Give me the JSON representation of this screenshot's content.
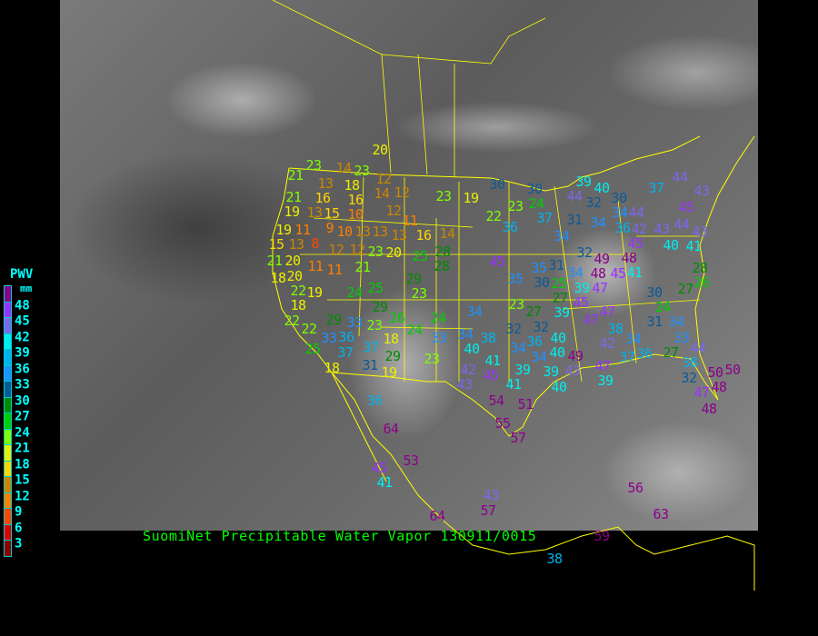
{
  "title": "SuomiNet Precipitable Water Vapor 130911/0015",
  "legend": {
    "title": "PWV",
    "unit": "mm",
    "ticks": [
      "48",
      "45",
      "42",
      "39",
      "36",
      "33",
      "30",
      "27",
      "24",
      "21",
      "18",
      "15",
      "12",
      "9",
      "6",
      "3"
    ],
    "colors": [
      "#8b008b",
      "#9b30ff",
      "#7b68ee",
      "#00eeee",
      "#00b2ee",
      "#1e90ff",
      "#0b5a96",
      "#008b00",
      "#00cd00",
      "#7fff00",
      "#eeee00",
      "#ffd700",
      "#cd8500",
      "#ff7f00",
      "#ff4500",
      "#dd0000",
      "#8b0000"
    ]
  },
  "colors": {
    "background": "#000000",
    "borders": "#ffff00",
    "title": "#00ff00",
    "legend_text": "#00ffff"
  },
  "stations": [
    23,
    21,
    13,
    14,
    23,
    18,
    12,
    21,
    16,
    16,
    14,
    12,
    19,
    13,
    15,
    10,
    9,
    12,
    11,
    19,
    11,
    10,
    13,
    13,
    13,
    16,
    14,
    15,
    13,
    8,
    12,
    12,
    23,
    20,
    25,
    28,
    28,
    21,
    20,
    11,
    11,
    21,
    20,
    18,
    22,
    19,
    24,
    25,
    29,
    23,
    18,
    29,
    26,
    24,
    22,
    29,
    33,
    23,
    24,
    33,
    22,
    33,
    36,
    18,
    25,
    37,
    37,
    29,
    23,
    18,
    31,
    19,
    30,
    19,
    30,
    23,
    24,
    22,
    37,
    36,
    39,
    44,
    40,
    30,
    32,
    34,
    37,
    44,
    43,
    31,
    34,
    36,
    42,
    44,
    45,
    43,
    44,
    43,
    34,
    45,
    48,
    40,
    41,
    32,
    49,
    48,
    45,
    41,
    45,
    35,
    35,
    31,
    34,
    30,
    25,
    39,
    47,
    27,
    45,
    28,
    26,
    27,
    30,
    24,
    23,
    27,
    39,
    47,
    47,
    31,
    34,
    34,
    32,
    32,
    38,
    34,
    38,
    36,
    40,
    34,
    42,
    33,
    40,
    34,
    34,
    40,
    49,
    36,
    37,
    27,
    44,
    38,
    41,
    39,
    39,
    43,
    47,
    32,
    50,
    50,
    42,
    45,
    43,
    41,
    40,
    39,
    47,
    48,
    20,
    23,
    36,
    64,
    54,
    51,
    55,
    57,
    53,
    45,
    41,
    43,
    57,
    64,
    56,
    63,
    59,
    38,
    48
  ]
}
